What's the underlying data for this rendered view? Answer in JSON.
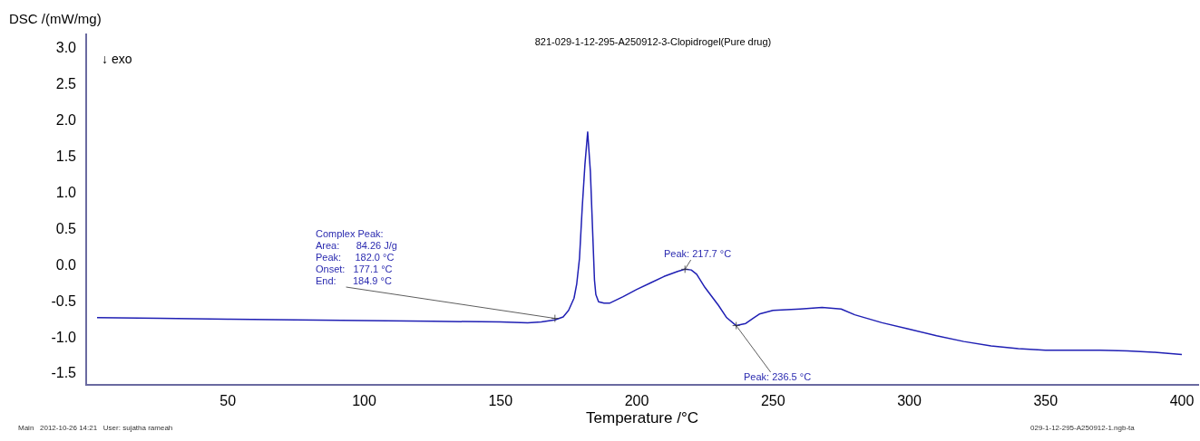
{
  "chart_data": {
    "type": "line",
    "title": "821-029-1-12-295-A250912-3-Clopidrogel(Pure drug)",
    "xlabel": "Temperature /°C",
    "ylabel": "DSC /(mW/mg)",
    "x": [
      2,
      25,
      50,
      75,
      100,
      125,
      150,
      160,
      165,
      170,
      173,
      175,
      177,
      178,
      179,
      180,
      181,
      182,
      183,
      183.5,
      184.5,
      185,
      186,
      188,
      190,
      195,
      200,
      205,
      210,
      215,
      217.7,
      220,
      222,
      225,
      230,
      233,
      236.5,
      240,
      243,
      245,
      250,
      255,
      260,
      268,
      275,
      280,
      290,
      300,
      310,
      320,
      330,
      340,
      350,
      360,
      370,
      380,
      390,
      400
    ],
    "series": [
      {
        "color": "#1f1fb4",
        "values": [
          -0.72,
          -0.73,
          -0.74,
          -0.75,
          -0.76,
          -0.77,
          -0.78,
          -0.79,
          -0.78,
          -0.75,
          -0.71,
          -0.62,
          -0.45,
          -0.25,
          0.1,
          0.8,
          1.4,
          1.85,
          1.3,
          0.8,
          -0.2,
          -0.4,
          -0.5,
          -0.52,
          -0.52,
          -0.43,
          -0.33,
          -0.24,
          -0.15,
          -0.08,
          -0.05,
          -0.06,
          -0.12,
          -0.3,
          -0.55,
          -0.72,
          -0.83,
          -0.8,
          -0.72,
          -0.67,
          -0.62,
          -0.61,
          -0.6,
          -0.58,
          -0.6,
          -0.68,
          -0.79,
          -0.88,
          -0.97,
          -1.05,
          -1.11,
          -1.15,
          -1.17,
          -1.17,
          -1.17,
          -1.18,
          -1.2,
          -1.23
        ]
      }
    ],
    "xlim": [
      -2,
      406
    ],
    "ylim": [
      -1.65,
      3.2
    ],
    "xticks": [
      50,
      100,
      150,
      200,
      250,
      300,
      350,
      400
    ],
    "yticks": [
      -1.5,
      {
        "value": -1,
        "label": "-1.0"
      },
      -0.5,
      {
        "value": 0,
        "label": "0.0"
      },
      0.5,
      {
        "value": 1,
        "label": "1.0"
      },
      1.5,
      {
        "value": 2,
        "label": "2.0"
      },
      2.5,
      {
        "value": 3,
        "label": "3.0"
      }
    ],
    "grid": false,
    "legend": false,
    "marker": "none",
    "line_style": "solid",
    "annotations": [
      "↓ exo",
      "Complex Peak:",
      "Area:      84.26 J/g",
      "Peak:     182.0 °C",
      "Onset:   177.1 °C",
      {
        "text": "End:      184.9 °C",
        "x": 170,
        "y": -0.73
      },
      {
        "text": "Peak: 217.7 °C",
        "x": 217.7,
        "y": -0.05
      },
      {
        "text": "Peak: 236.5 °C",
        "x": 236.5,
        "y": -0.83
      },
      "Main   2012-10-26 14:21   User: sujatha rameah",
      "029-1-12-295-A250912-1.ngb-ta"
    ]
  }
}
